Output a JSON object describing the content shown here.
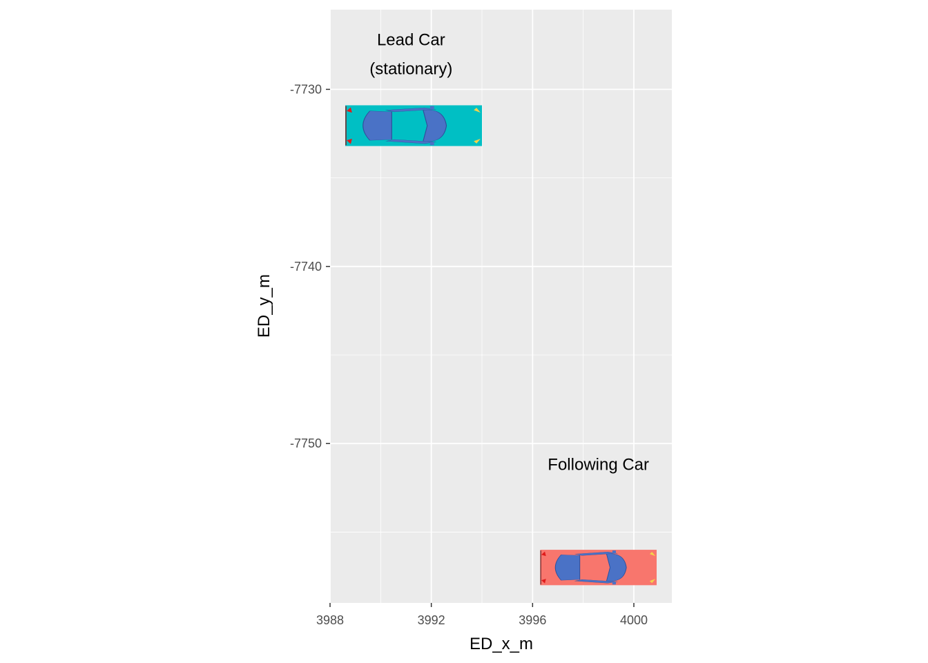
{
  "chart_data": {
    "type": "scatter",
    "xlabel": "ED_x_m",
    "ylabel": "ED_y_m",
    "xlim": [
      3988,
      4001.5
    ],
    "ylim": [
      -7759,
      -7725.5
    ],
    "x_ticks": [
      3988,
      3992,
      3996,
      4000
    ],
    "y_ticks": [
      -7730,
      -7740,
      -7750
    ],
    "grid": true,
    "panel_background": "#ebebeb",
    "cars": [
      {
        "label": "Lead Car (stationary)",
        "label_lines": [
          "Lead Car",
          "(stationary)"
        ],
        "label_position": [
          3991.2,
          -7727.5
        ],
        "x_range": [
          3988.6,
          3994.0
        ],
        "y_range": [
          -7733.2,
          -7730.9
        ],
        "color": "#00bfc4",
        "facing": "right"
      },
      {
        "label": "Following Car",
        "label_lines": [
          "Following Car"
        ],
        "label_position": [
          3998.6,
          -7751.5
        ],
        "x_range": [
          3996.3,
          4000.9
        ],
        "y_range": [
          -7758.0,
          -7756.0
        ],
        "color": "#f8766d",
        "facing": "right"
      }
    ],
    "car_body_color": "#4a72c6"
  }
}
